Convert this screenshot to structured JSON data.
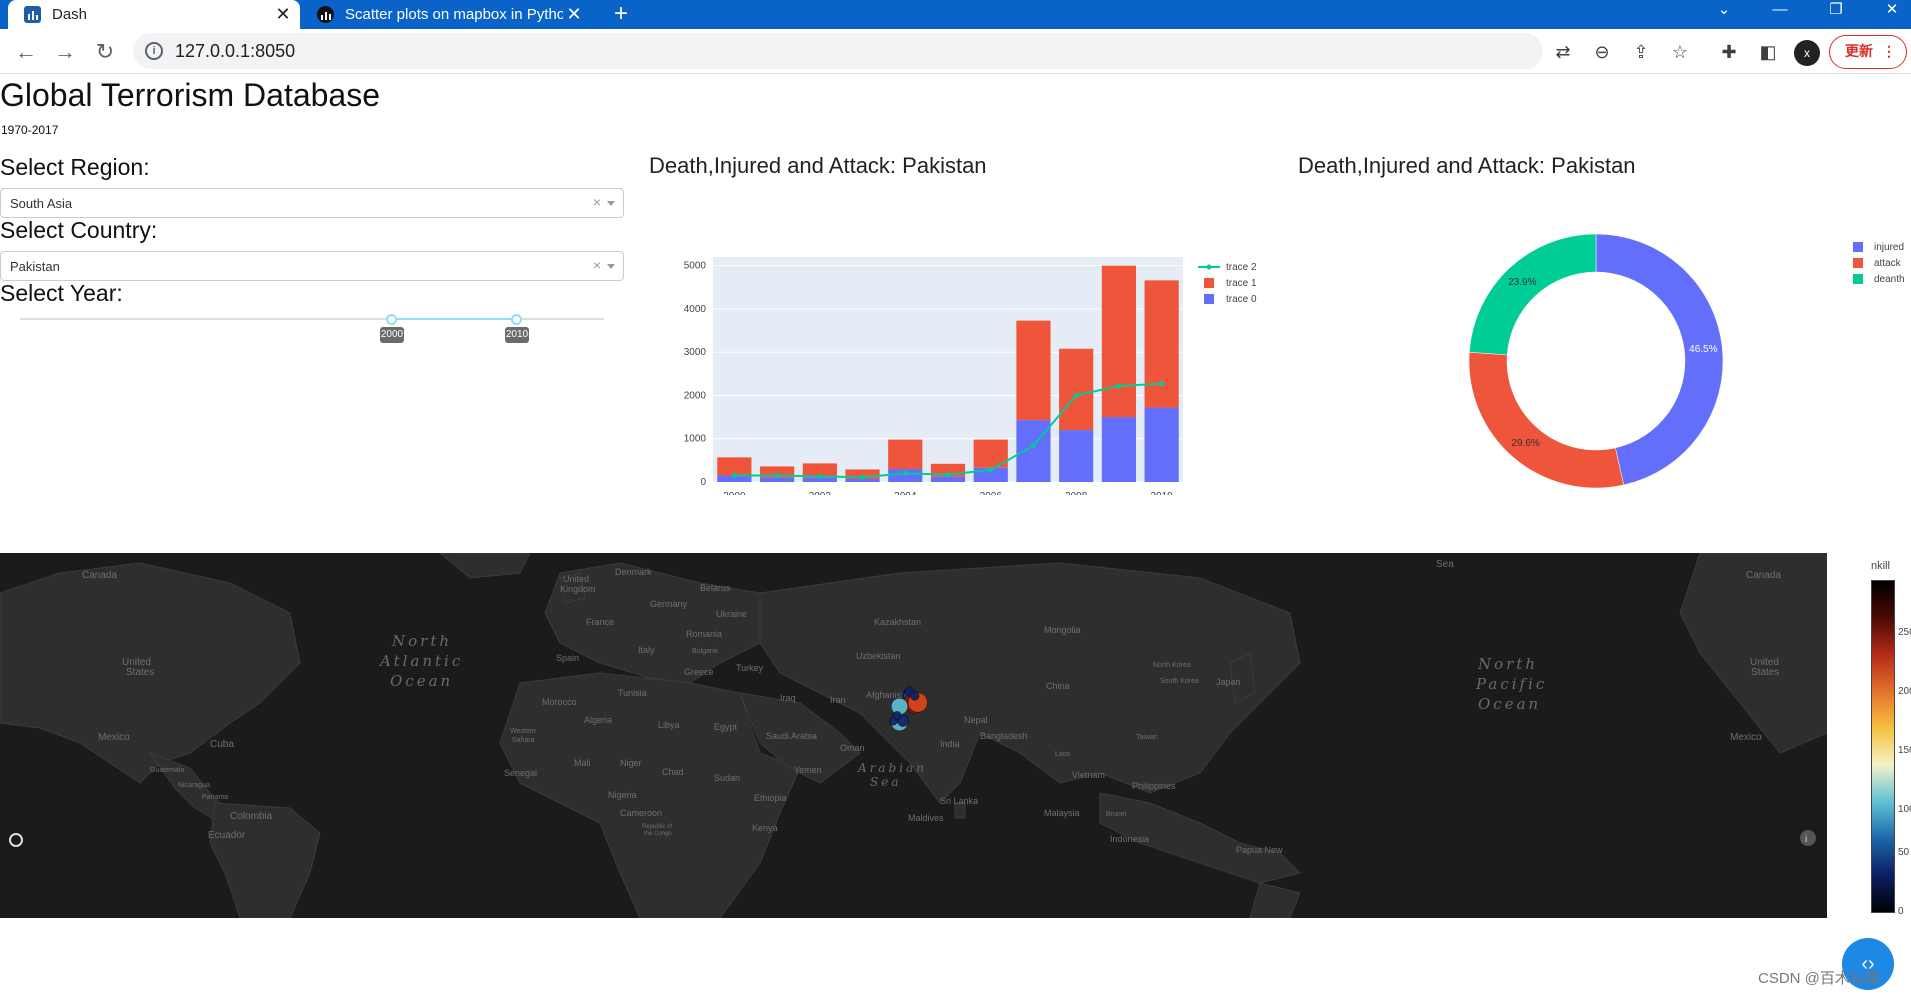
{
  "browser": {
    "tabs": [
      {
        "title": "Dash",
        "active": true
      },
      {
        "title": "Scatter plots on mapbox in Pytho",
        "active": false
      }
    ],
    "url": "127.0.0.1:8050",
    "update_label": "更新"
  },
  "page": {
    "title": "Global Terrorism Database",
    "subtitle": "1970-2017",
    "region_label": "Select Region:",
    "region_value": "South Asia",
    "country_label": "Select Country:",
    "country_value": "Pakistan",
    "year_label": "Select Year:",
    "year_range": {
      "min": 1970,
      "max": 2017,
      "selected": [
        2000,
        2010
      ]
    },
    "year_start_label": "2000",
    "year_end_label": "2010",
    "bar_title": "Death,Injured and Attack: Pakistan",
    "pie_title": "Death,Injured and Attack: Pakistan"
  },
  "chart_data": [
    {
      "type": "bar",
      "stacked": true,
      "x": [
        2000,
        2001,
        2002,
        2003,
        2004,
        2005,
        2006,
        2007,
        2008,
        2009,
        2010
      ],
      "xticks": [
        "2000",
        "2002",
        "2004",
        "2006",
        "2008",
        "2010"
      ],
      "yticks": [
        "0",
        "1000",
        "2000",
        "3000",
        "4000",
        "5000"
      ],
      "ylim": [
        0,
        5200
      ],
      "series": [
        {
          "name": "trace 0",
          "kind": "bar",
          "color": "#636efa",
          "values": [
            150,
            100,
            100,
            70,
            300,
            120,
            330,
            1430,
            1200,
            1500,
            1720
          ]
        },
        {
          "name": "trace 1",
          "kind": "bar",
          "color": "#ef553b",
          "values": [
            420,
            260,
            330,
            220,
            680,
            300,
            650,
            2300,
            1880,
            3500,
            2940
          ]
        },
        {
          "name": "trace 2",
          "kind": "line",
          "color": "#00cc96",
          "values": [
            150,
            150,
            130,
            110,
            200,
            170,
            280,
            840,
            2000,
            2220,
            2270
          ]
        }
      ],
      "legend": "right",
      "background": "#e5ecf6"
    },
    {
      "type": "pie",
      "donut": true,
      "labels": [
        "injured",
        "attack",
        "deanth"
      ],
      "values": [
        46.5,
        29.6,
        23.9
      ],
      "display_labels": [
        "46.5%",
        "29.6%",
        "23.9%"
      ],
      "colors": [
        "#636efa",
        "#ef553b",
        "#00cc96"
      ],
      "legend": "right"
    }
  ],
  "map": {
    "style": "dark",
    "colorbar_title": "nkill",
    "colorbar_ticks": [
      "250",
      "200",
      "150",
      "100",
      "50",
      "0"
    ],
    "labels": {
      "oceans": [
        {
          "text": "North\nAtlantic\nOcean"
        },
        {
          "text": "North\nPacific\nOcean"
        },
        {
          "text": "Arabian\nSea"
        }
      ],
      "places": [
        "Canada",
        "United States",
        "Mexico",
        "Cuba",
        "Guatemala",
        "Nicaragua",
        "Panama",
        "Colombia",
        "Ecuador",
        "United Kingdom",
        "Denmark",
        "Belarus",
        "Germany",
        "France",
        "Ukraine",
        "Spain",
        "Italy",
        "Romania",
        "Bulgaria",
        "Greece",
        "Turkey",
        "Morocco",
        "Tunisia",
        "Algeria",
        "Libya",
        "Egypt",
        "Western Sahara",
        "Mali",
        "Niger",
        "Chad",
        "Sudan",
        "Senegal",
        "Nigeria",
        "Ethiopia",
        "Cameroon",
        "Republic of the Congo",
        "Kenya",
        "Kazakhstan",
        "Uzbekistan",
        "Mongolia",
        "Iraq",
        "Iran",
        "Afghanistan",
        "Saudi Arabia",
        "Oman",
        "Yemen",
        "China",
        "Nepal",
        "Bangladesh",
        "India",
        "Sri Lanka",
        "Maldives",
        "North Korea",
        "South Korea",
        "Japan",
        "Taiwan",
        "Laos",
        "Vietnam",
        "Philippines",
        "Malaysia",
        "Brunei",
        "Indonesia",
        "Papua New",
        "Sea"
      ]
    },
    "points": [
      {
        "lon": 70.5,
        "lat": 34.0,
        "nkill": 40
      },
      {
        "lon": 71.5,
        "lat": 33.6,
        "nkill": 60
      },
      {
        "lon": 72.0,
        "lat": 33.0,
        "nkill": 20
      },
      {
        "lon": 73.0,
        "lat": 31.5,
        "nkill": 250
      },
      {
        "lon": 67.0,
        "lat": 30.2,
        "nkill": 110
      },
      {
        "lon": 67.0,
        "lat": 24.9,
        "nkill": 120
      },
      {
        "lon": 66.0,
        "lat": 27.0,
        "nkill": 10
      },
      {
        "lon": 64.5,
        "lat": 25.3,
        "nkill": 5
      },
      {
        "lon": 68.4,
        "lat": 25.4,
        "nkill": 30
      },
      {
        "lon": 74.3,
        "lat": 31.5,
        "nkill": 180
      },
      {
        "lon": 71.0,
        "lat": 35.2,
        "nkill": 15
      },
      {
        "lon": 73.1,
        "lat": 33.7,
        "nkill": 8
      }
    ]
  },
  "watermark": "CSDN @百木从森"
}
